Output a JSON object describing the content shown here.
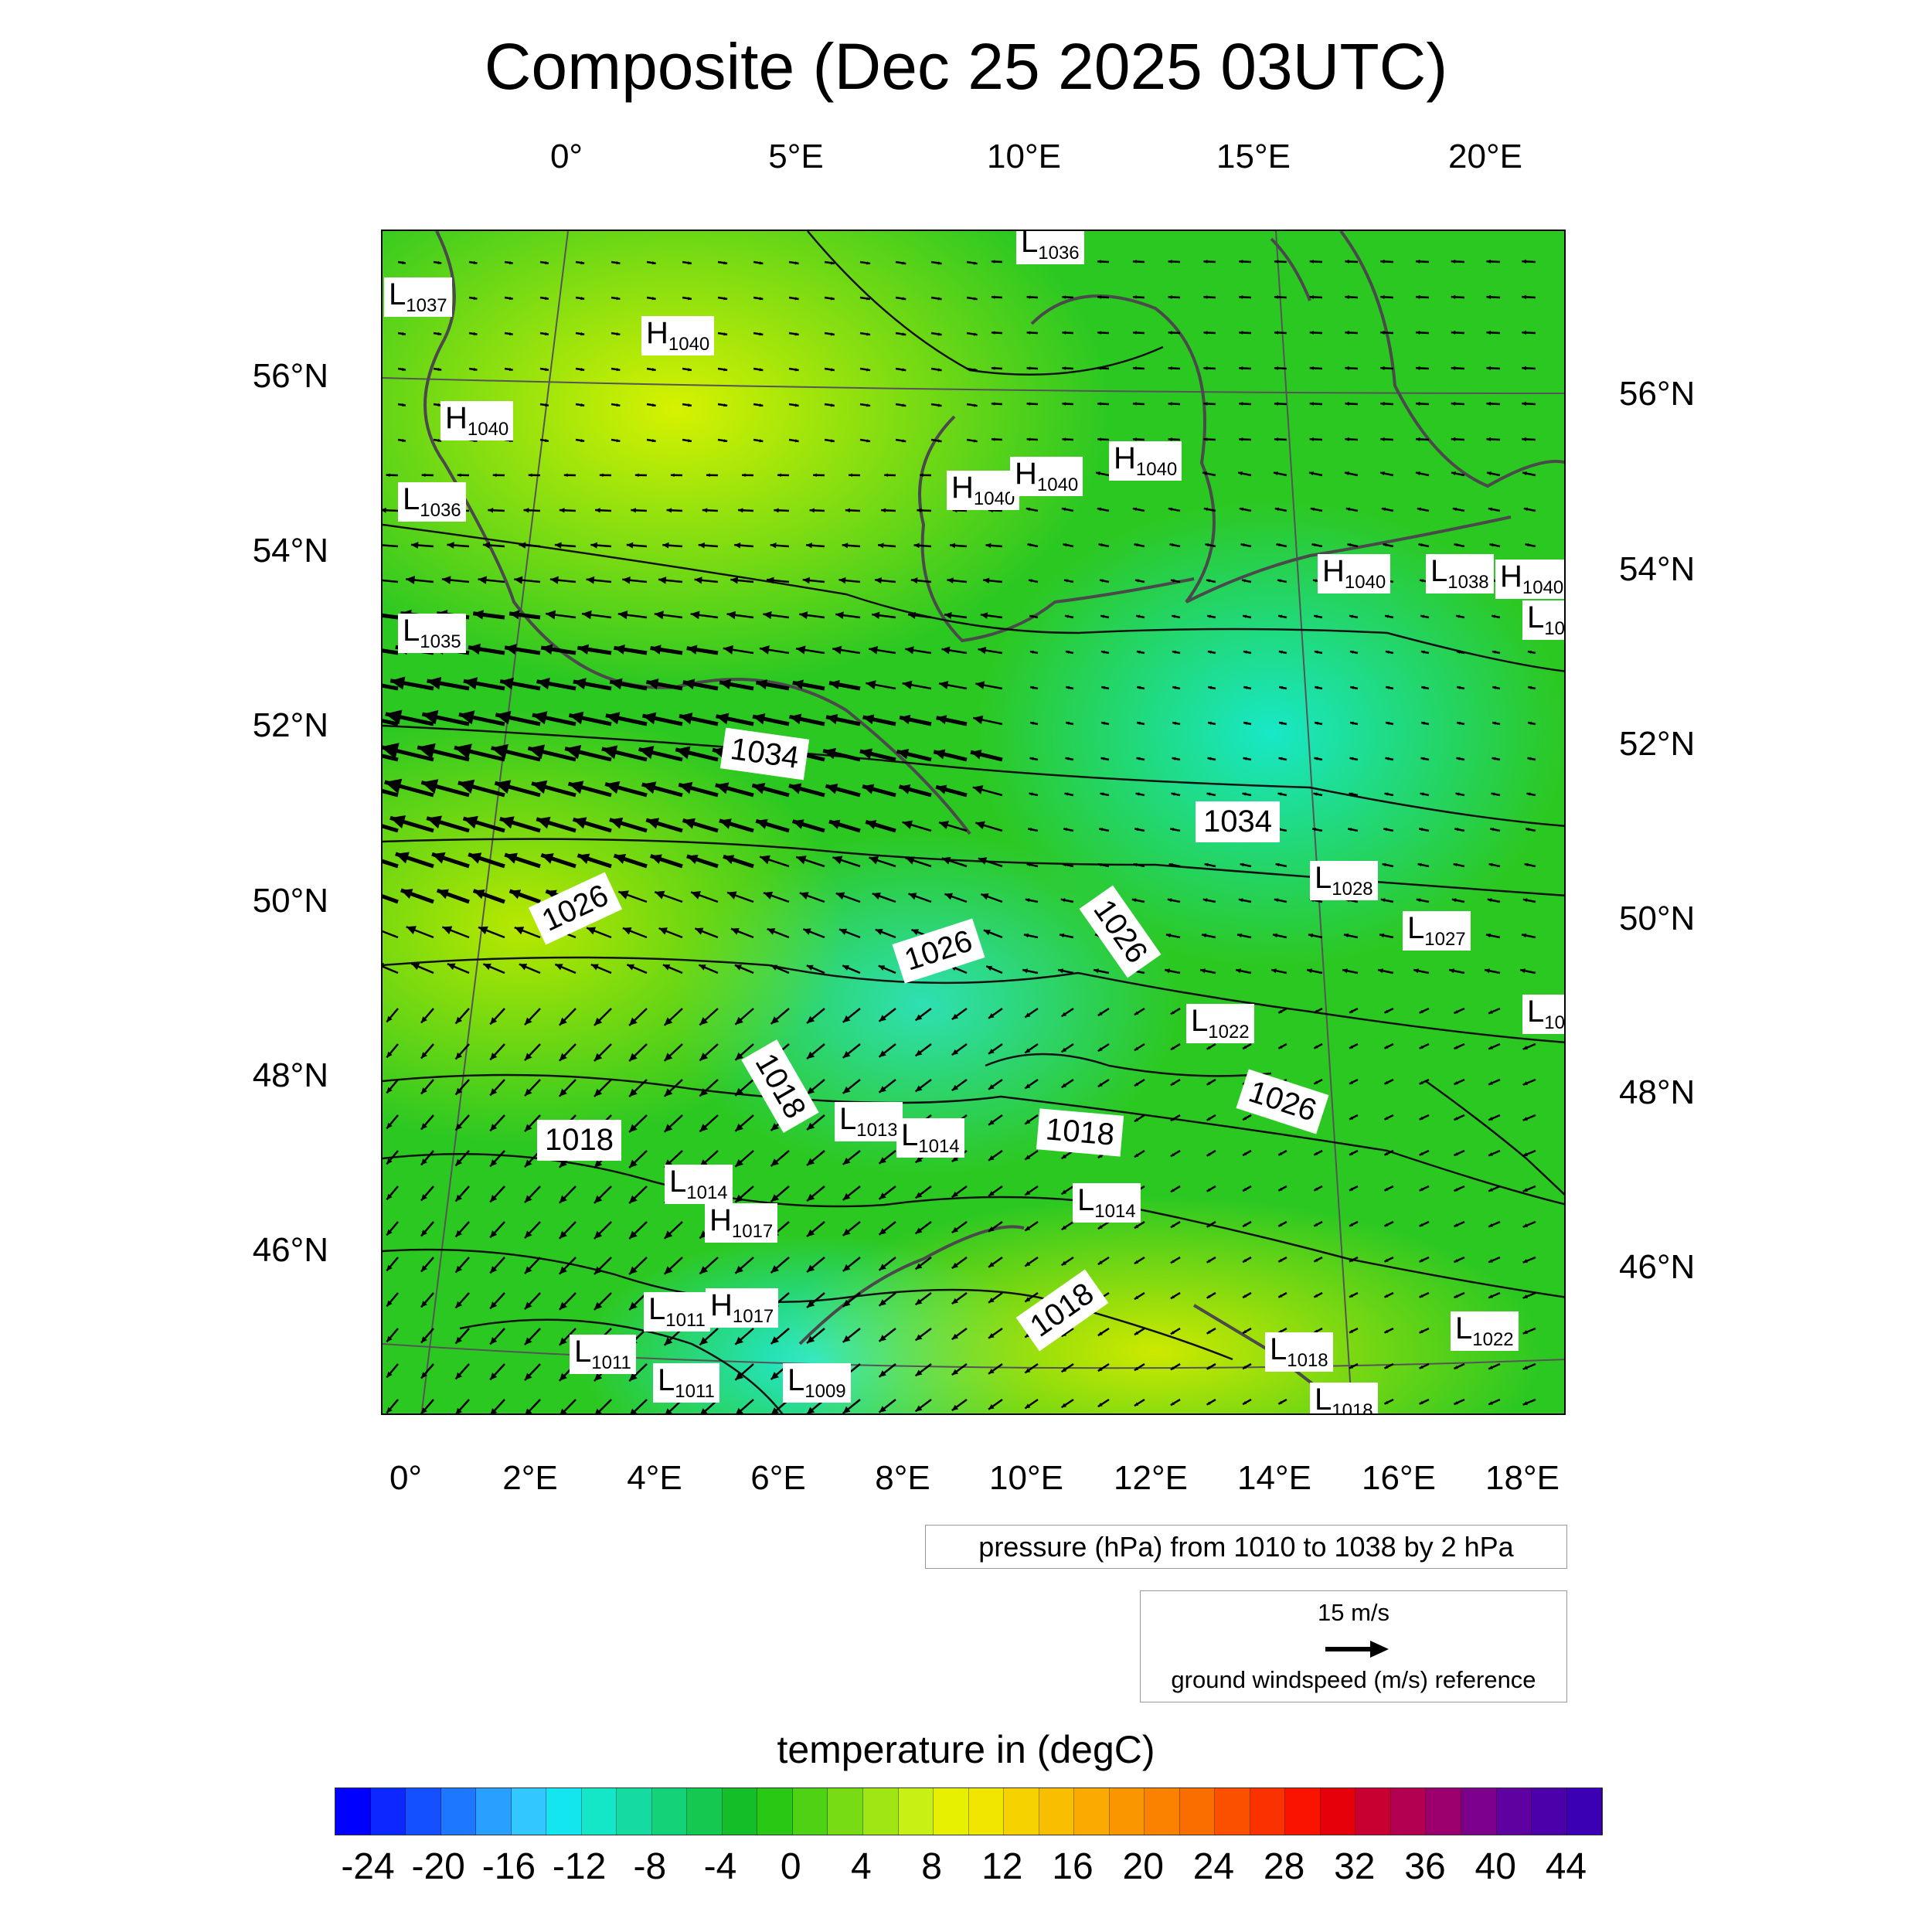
{
  "title": "Composite (Dec 25 2025 03UTC)",
  "top_axis": [
    "0°",
    "5°E",
    "10°E",
    "15°E",
    "20°E"
  ],
  "bottom_axis": [
    "0°",
    "2°E",
    "4°E",
    "6°E",
    "8°E",
    "10°E",
    "12°E",
    "14°E",
    "16°E",
    "18°E"
  ],
  "left_axis": [
    "56°N",
    "54°N",
    "52°N",
    "50°N",
    "48°N",
    "46°N"
  ],
  "right_axis": [
    "56°N",
    "54°N",
    "52°N",
    "50°N",
    "48°N",
    "46°N"
  ],
  "pressure_centers": [
    {
      "letter": "L",
      "value": "1037"
    },
    {
      "letter": "H",
      "value": "1040"
    },
    {
      "letter": "L",
      "value": "1036"
    },
    {
      "letter": "H",
      "value": "1040"
    },
    {
      "letter": "L",
      "value": "1036"
    },
    {
      "letter": "H",
      "value": "1040"
    },
    {
      "letter": "H",
      "value": "1040"
    },
    {
      "letter": "H",
      "value": "1040"
    },
    {
      "letter": "L",
      "value": "1035"
    },
    {
      "letter": "H",
      "value": "1040"
    },
    {
      "letter": "L",
      "value": "1038"
    },
    {
      "letter": "H",
      "value": "1040"
    },
    {
      "letter": "L",
      "value": "10"
    },
    {
      "letter": "L",
      "value": "1028"
    },
    {
      "letter": "L",
      "value": "1027"
    },
    {
      "letter": "L",
      "value": "1022"
    },
    {
      "letter": "L",
      "value": "10"
    },
    {
      "letter": "L",
      "value": "1013"
    },
    {
      "letter": "L",
      "value": "1014"
    },
    {
      "letter": "L",
      "value": "1014"
    },
    {
      "letter": "H",
      "value": "1017"
    },
    {
      "letter": "L",
      "value": "1014"
    },
    {
      "letter": "L",
      "value": "1011"
    },
    {
      "letter": "H",
      "value": "1017"
    },
    {
      "letter": "L",
      "value": "1011"
    },
    {
      "letter": "L",
      "value": "1011"
    },
    {
      "letter": "L",
      "value": "1009"
    },
    {
      "letter": "L",
      "value": "1018"
    },
    {
      "letter": "L",
      "value": "1018"
    },
    {
      "letter": "L",
      "value": "1022"
    }
  ],
  "isobar_labels": [
    "1034",
    "1034",
    "1026",
    "1026",
    "1026",
    "1026",
    "1018",
    "1018",
    "1018",
    "1018"
  ],
  "pressure_legend": "pressure (hPa) from 1010 to 1038 by 2 hPa",
  "wind_legend": {
    "speed": "15 m/s",
    "label": "ground windspeed (m/s) reference"
  },
  "colorbar": {
    "title": "temperature in (degC)",
    "labels": [
      "-24",
      "-20",
      "-16",
      "-12",
      "-8",
      "-4",
      "0",
      "4",
      "8",
      "12",
      "16",
      "20",
      "24",
      "28",
      "32",
      "36",
      "40",
      "44"
    ],
    "colors": [
      "#0000ff",
      "#0a28ff",
      "#1450ff",
      "#1e78ff",
      "#28a0ff",
      "#32c8ff",
      "#14e6f0",
      "#14e6c8",
      "#14dca0",
      "#14d278",
      "#14c850",
      "#14be28",
      "#28c814",
      "#50d214",
      "#78dc14",
      "#a0e614",
      "#c8f014",
      "#e6f000",
      "#f0e600",
      "#f5d200",
      "#fabe00",
      "#faaa00",
      "#fa9600",
      "#fa8200",
      "#fa6e00",
      "#fa5000",
      "#fa3200",
      "#fa1400",
      "#e6000a",
      "#c80032",
      "#b40050",
      "#9b006e",
      "#7d008c",
      "#5f00a0",
      "#4b00aa",
      "#3c00b4"
    ]
  }
}
